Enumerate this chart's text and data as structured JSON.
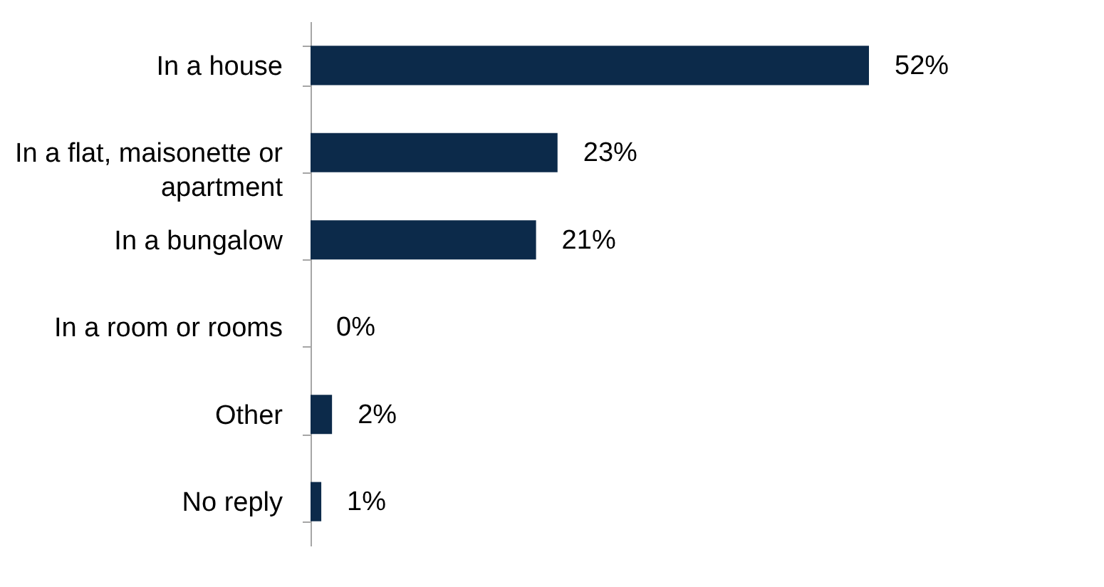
{
  "chart_data": {
    "type": "bar",
    "orientation": "horizontal",
    "categories": [
      "In a house",
      "In a flat, maisonette or apartment",
      "In a bungalow",
      "In a room or rooms",
      "Other",
      "No reply"
    ],
    "values": [
      52,
      23,
      21,
      0,
      2,
      1
    ],
    "value_labels": [
      "52%",
      "23%",
      "21%",
      "0%",
      "2%",
      "1%"
    ],
    "color": "#0c2a4a",
    "grid": false
  }
}
